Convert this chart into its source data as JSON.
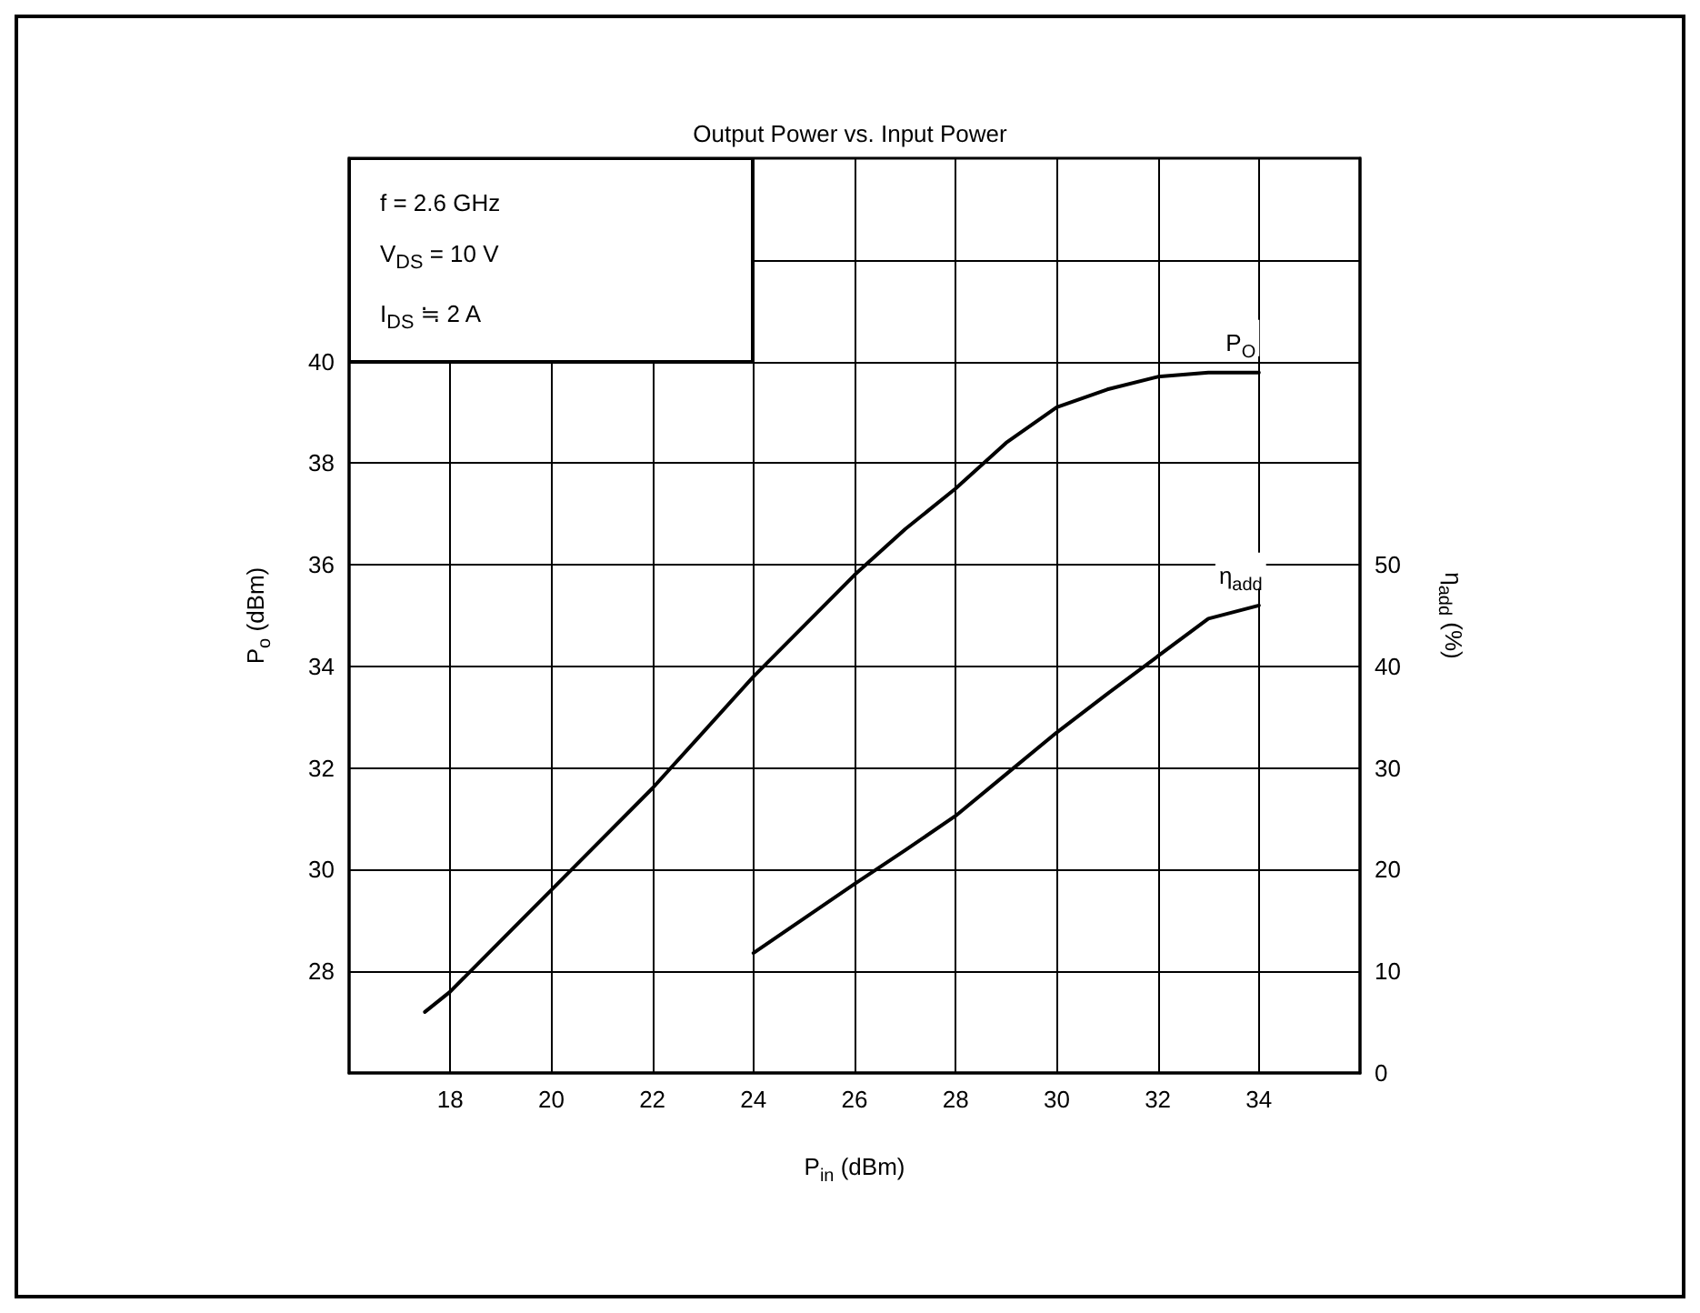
{
  "chart_data": {
    "type": "line",
    "title": "Output Power vs. Input Power",
    "xlabel": "P$_{in}$ (dBm)",
    "ylabel": "P$_{o}$ (dBm)",
    "y2label": "η$_{add}$ (%)",
    "annotations": [
      "f = 2.6 GHz",
      "V$_{DS}$ = 10 V",
      "I$_{DS}$ ≒ 2 A"
    ],
    "series": [
      {
        "name": "P$_{O}$",
        "color": "#000000",
        "x": [
          17.5,
          18,
          20,
          22,
          24,
          26,
          27,
          28,
          29,
          30,
          31,
          32,
          33,
          34
        ],
        "values": [
          27.2,
          27.6,
          29.6,
          31.6,
          33.8,
          35.8,
          36.7,
          37.5,
          38.4,
          39.1,
          39.45,
          39.7,
          39.78,
          39.78
        ]
      },
      {
        "name": "η$_{add}$",
        "color": "#000000",
        "axis": "y2",
        "x": [
          24,
          25,
          26,
          27,
          28,
          29,
          30,
          31,
          32,
          33,
          34
        ],
        "values": [
          11.8,
          15.2,
          18.6,
          21.9,
          25.3,
          29.4,
          33.5,
          37.3,
          41,
          44.7,
          46
        ]
      }
    ],
    "xlim": [
      16,
      36
    ],
    "xticks": [
      18,
      20,
      22,
      24,
      26,
      28,
      30,
      32,
      34
    ],
    "ylim": [
      26,
      44
    ],
    "yticks": [
      28,
      30,
      32,
      34,
      36,
      38,
      40,
      {
        "value": 42,
        "label": null
      }
    ],
    "y2lim": [
      0,
      90
    ],
    "y2ticks": [
      0,
      10,
      20,
      30,
      40,
      50
    ],
    "grid": true,
    "legend": false,
    "marker": "none",
    "line_style": "solid"
  }
}
